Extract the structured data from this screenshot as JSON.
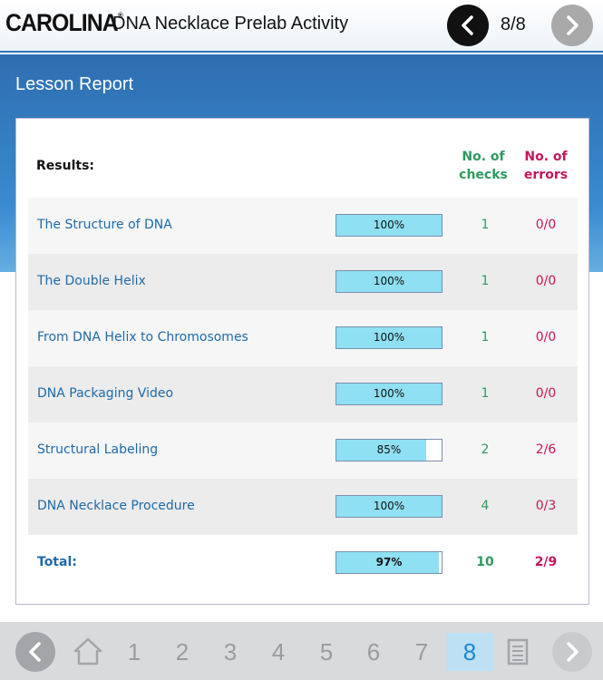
{
  "header": {
    "logo_text": "CAROLINA",
    "logo_mark": "®",
    "title": "DNA Necklace Prelab Activity",
    "page_indicator": "8/8",
    "prev_icon": "chevron-left-icon",
    "next_icon": "chevron-right-icon"
  },
  "report": {
    "heading": "Lesson Report",
    "results_label": "Results:",
    "checks_header_line1": "No. of",
    "checks_header_line2": "checks",
    "errors_header_line1": "No. of",
    "errors_header_line2": "errors",
    "rows": [
      {
        "label": "The Structure of DNA",
        "progress_text": "100%",
        "progress": 100,
        "checks": "1",
        "errors": "0/0"
      },
      {
        "label": "The Double Helix",
        "progress_text": "100%",
        "progress": 100,
        "checks": "1",
        "errors": "0/0"
      },
      {
        "label": "From DNA Helix to Chromosomes",
        "progress_text": "100%",
        "progress": 100,
        "checks": "1",
        "errors": "0/0"
      },
      {
        "label": "DNA Packaging Video",
        "progress_text": "100%",
        "progress": 100,
        "checks": "1",
        "errors": "0/0"
      },
      {
        "label": "Structural Labeling",
        "progress_text": "85%",
        "progress": 85,
        "checks": "2",
        "errors": "2/6"
      },
      {
        "label": "DNA Necklace Procedure",
        "progress_text": "100%",
        "progress": 100,
        "checks": "4",
        "errors": "0/3"
      }
    ],
    "total": {
      "label": "Total:",
      "progress_text": "97%",
      "progress": 97,
      "checks": "10",
      "errors": "2/9"
    }
  },
  "footer": {
    "pages": [
      "1",
      "2",
      "3",
      "4",
      "5",
      "6",
      "7",
      "8"
    ],
    "active_page": "8",
    "home_icon": "home-icon",
    "report_icon": "report-list-icon"
  },
  "colors": {
    "checks": "#2e9a5e",
    "errors": "#c2185b",
    "link": "#1e6aa8",
    "bar_fill": "#8ee0f2",
    "band": "#2e6eb0",
    "active_page_bg": "#bde0f5"
  }
}
